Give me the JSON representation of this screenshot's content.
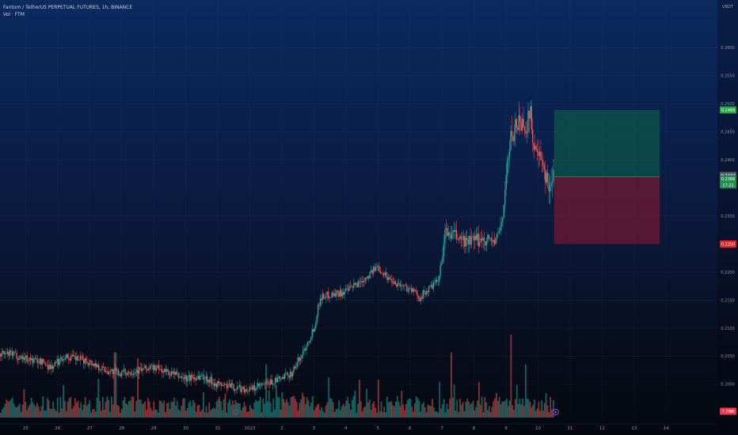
{
  "header": {
    "title": "Fantom / TetherUS PERPETUAL FUTURES, 1h, BINANCE",
    "indicator": "Vol · FTM"
  },
  "chart_data": {
    "type": "candlestick",
    "quote_unit": "USDT",
    "ylim": [
      0.1935,
      0.2685
    ],
    "y_ticks": [
      "0.2600",
      "0.2550",
      "0.2500",
      "0.2450",
      "0.2400",
      "0.2300",
      "0.2200",
      "0.2150",
      "0.2100",
      "0.2050",
      "0.2000"
    ],
    "x_labels": [
      "25",
      "26",
      "27",
      "28",
      "29",
      "30",
      "31",
      "2023",
      "2",
      "3",
      "4",
      "5",
      "6",
      "7",
      "8",
      "9",
      "10",
      "11",
      "12",
      "13",
      "14"
    ],
    "x_ticks_pos": [
      0,
      1,
      2,
      3,
      4,
      5,
      6,
      7,
      8,
      9,
      10,
      11,
      12,
      13,
      14,
      15,
      16,
      17,
      18,
      19,
      20
    ],
    "x_range": [
      -0.8,
      21.6
    ],
    "price_path": [
      [
        -0.8,
        0.2054
      ],
      [
        -0.4,
        0.2053
      ],
      [
        0.1,
        0.2045
      ],
      [
        0.5,
        0.204
      ],
      [
        0.8,
        0.203
      ],
      [
        1.2,
        0.205
      ],
      [
        1.6,
        0.2045
      ],
      [
        2.0,
        0.204
      ],
      [
        2.5,
        0.2025
      ],
      [
        3.0,
        0.202
      ],
      [
        3.5,
        0.2025
      ],
      [
        4.0,
        0.203
      ],
      [
        4.5,
        0.202
      ],
      [
        5.0,
        0.201
      ],
      [
        5.5,
        0.2015
      ],
      [
        6.0,
        0.2
      ],
      [
        6.5,
        0.1995
      ],
      [
        7.0,
        0.199
      ],
      [
        7.5,
        0.2
      ],
      [
        8.0,
        0.201
      ],
      [
        8.3,
        0.202
      ],
      [
        8.6,
        0.205
      ],
      [
        9.0,
        0.21
      ],
      [
        9.2,
        0.2155
      ],
      [
        9.5,
        0.216
      ],
      [
        10.0,
        0.2165
      ],
      [
        10.5,
        0.2185
      ],
      [
        11.0,
        0.221
      ],
      [
        11.3,
        0.219
      ],
      [
        11.6,
        0.218
      ],
      [
        12.0,
        0.217
      ],
      [
        12.3,
        0.2155
      ],
      [
        12.6,
        0.217
      ],
      [
        12.9,
        0.2185
      ],
      [
        13.1,
        0.227
      ],
      [
        13.4,
        0.2265
      ],
      [
        13.7,
        0.2255
      ],
      [
        14.0,
        0.2255
      ],
      [
        14.3,
        0.226
      ],
      [
        14.7,
        0.2255
      ],
      [
        14.9,
        0.23
      ],
      [
        15.05,
        0.24
      ],
      [
        15.2,
        0.245
      ],
      [
        15.4,
        0.247
      ],
      [
        15.6,
        0.246
      ],
      [
        15.75,
        0.248
      ],
      [
        15.9,
        0.242
      ],
      [
        16.1,
        0.239
      ],
      [
        16.3,
        0.236
      ],
      [
        16.5,
        0.237
      ]
    ],
    "volume_bars_count": 380,
    "volume_spikes": [
      [
        2.8,
        0.55
      ],
      [
        3.5,
        0.5
      ],
      [
        7.5,
        0.45
      ],
      [
        13.3,
        0.55
      ],
      [
        15.15,
        0.7
      ],
      [
        15.6,
        0.45
      ]
    ],
    "position": {
      "type": "long",
      "x_start": 16.5,
      "x_end": 19.8,
      "entry": 0.237,
      "target": 0.2489,
      "stop": 0.225
    },
    "price_labels": [
      {
        "value": 0.2489,
        "text": "0.2489",
        "color": "#22ab3a"
      },
      {
        "value": 0.2372,
        "text": "0.2372",
        "color": "#5b6272"
      },
      {
        "value": 0.2366,
        "text": "0.2366",
        "color": "#1e8f4b"
      },
      {
        "value": 0.225,
        "text": "0.2250",
        "color": "#e0242b"
      }
    ],
    "countdown": "17:22",
    "volume_label": "7.78M",
    "grid": true
  }
}
